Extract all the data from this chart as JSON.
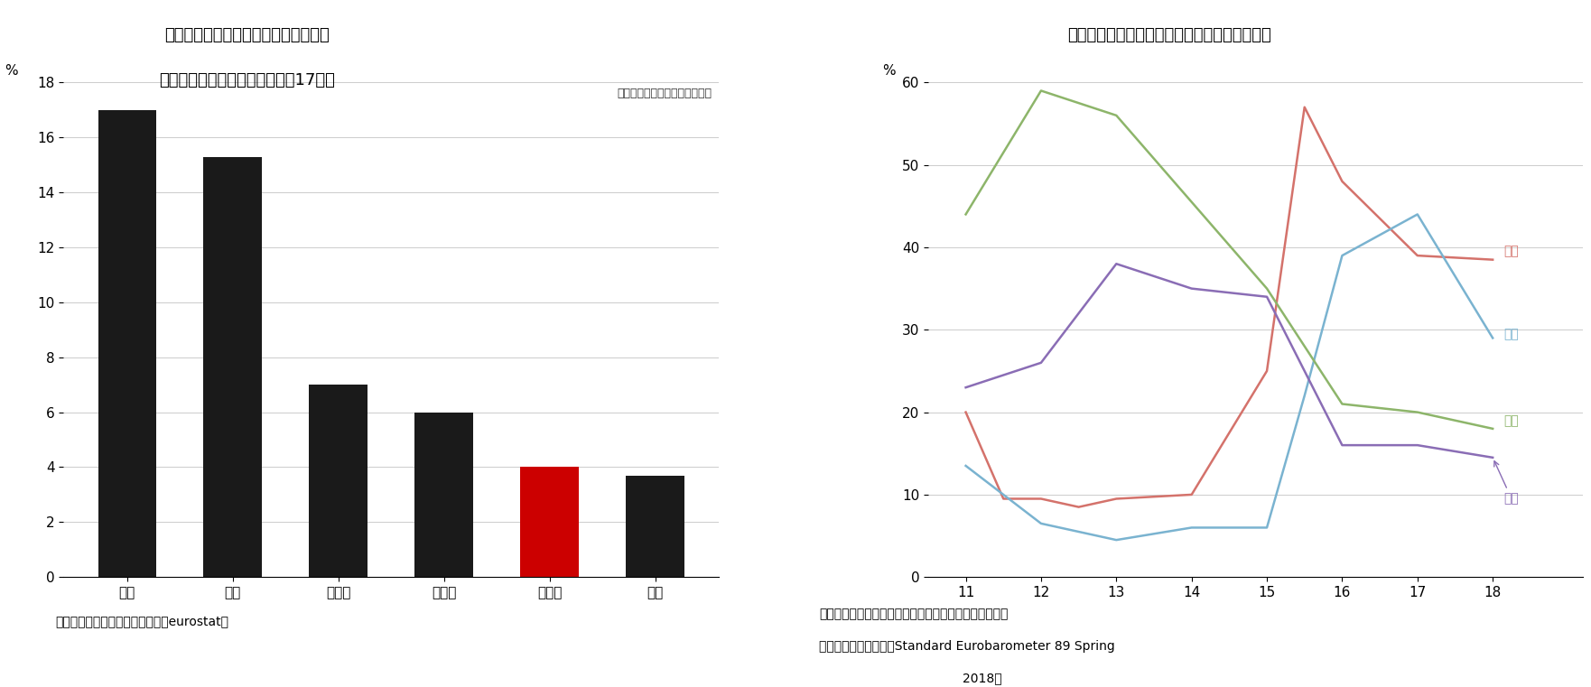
{
  "bar_categories": [
    "米国",
    "中国",
    "スイス",
    "ロシア",
    "トルコ",
    "日本"
  ],
  "bar_values": [
    17.0,
    15.3,
    7.0,
    6.0,
    4.0,
    3.7
  ],
  "bar_colors": [
    "#1a1a1a",
    "#1a1a1a",
    "#1a1a1a",
    "#1a1a1a",
    "#cc0000",
    "#1a1a1a"
  ],
  "bar_title_line1": "図表７　ＥＵの財貳易（輸出＋輸入）",
  "bar_title_line2": "上位相手国・地域のシェア　（17年）",
  "bar_annotation": "（財貳易総額に占める構成比）",
  "bar_source": "（資料）　欧州委員会統計局　（eurostat）",
  "bar_ylim": [
    0,
    18
  ],
  "bar_yticks": [
    0,
    2,
    4,
    6,
    8,
    10,
    12,
    14,
    16,
    18
  ],
  "line_title": "図表８　ＥＵが直面する課題に関する世論調査",
  "line_x_ticks": [
    11,
    12,
    13,
    14,
    15,
    16,
    17,
    18
  ],
  "imm_x": [
    11,
    11.5,
    12,
    12.5,
    13,
    14,
    15,
    15.5,
    16,
    17,
    18
  ],
  "imm_y": [
    20.0,
    9.5,
    9.5,
    8.5,
    9.5,
    10.0,
    25.0,
    57.0,
    48.0,
    39.0,
    38.5
  ],
  "ter_x": [
    11,
    12,
    13,
    14,
    15,
    15.5,
    16,
    17,
    18
  ],
  "ter_y": [
    13.5,
    6.5,
    4.5,
    6.0,
    6.0,
    22.0,
    39.0,
    44.0,
    29.0
  ],
  "eco_x": [
    11,
    12,
    13,
    14,
    15,
    16,
    17,
    18
  ],
  "eco_y": [
    44.0,
    59.0,
    56.0,
    45.5,
    35.0,
    21.0,
    20.0,
    18.0
  ],
  "une_x": [
    11,
    12,
    13,
    14,
    15,
    16,
    17,
    18
  ],
  "une_y": [
    23.0,
    26.0,
    38.0,
    35.0,
    34.0,
    16.0,
    16.0,
    14.5
  ],
  "color_imm": "#d4726b",
  "color_ter": "#7ab3d0",
  "color_eco": "#8db56a",
  "color_une": "#8a6db5",
  "label_imm": "移民",
  "label_ter": "テロ",
  "label_eco": "経済",
  "label_une": "失業",
  "line_ylim": [
    0,
    60
  ],
  "line_yticks": [
    0,
    10,
    20,
    30,
    40,
    50,
    60
  ],
  "line_source1": "（＊）　上位２項目を回答、全回答に対する割合を算出",
  "line_source2": "（資料）欧州委員会「Standard Eurobarometer 89 Spring",
  "line_source3": "2018」"
}
